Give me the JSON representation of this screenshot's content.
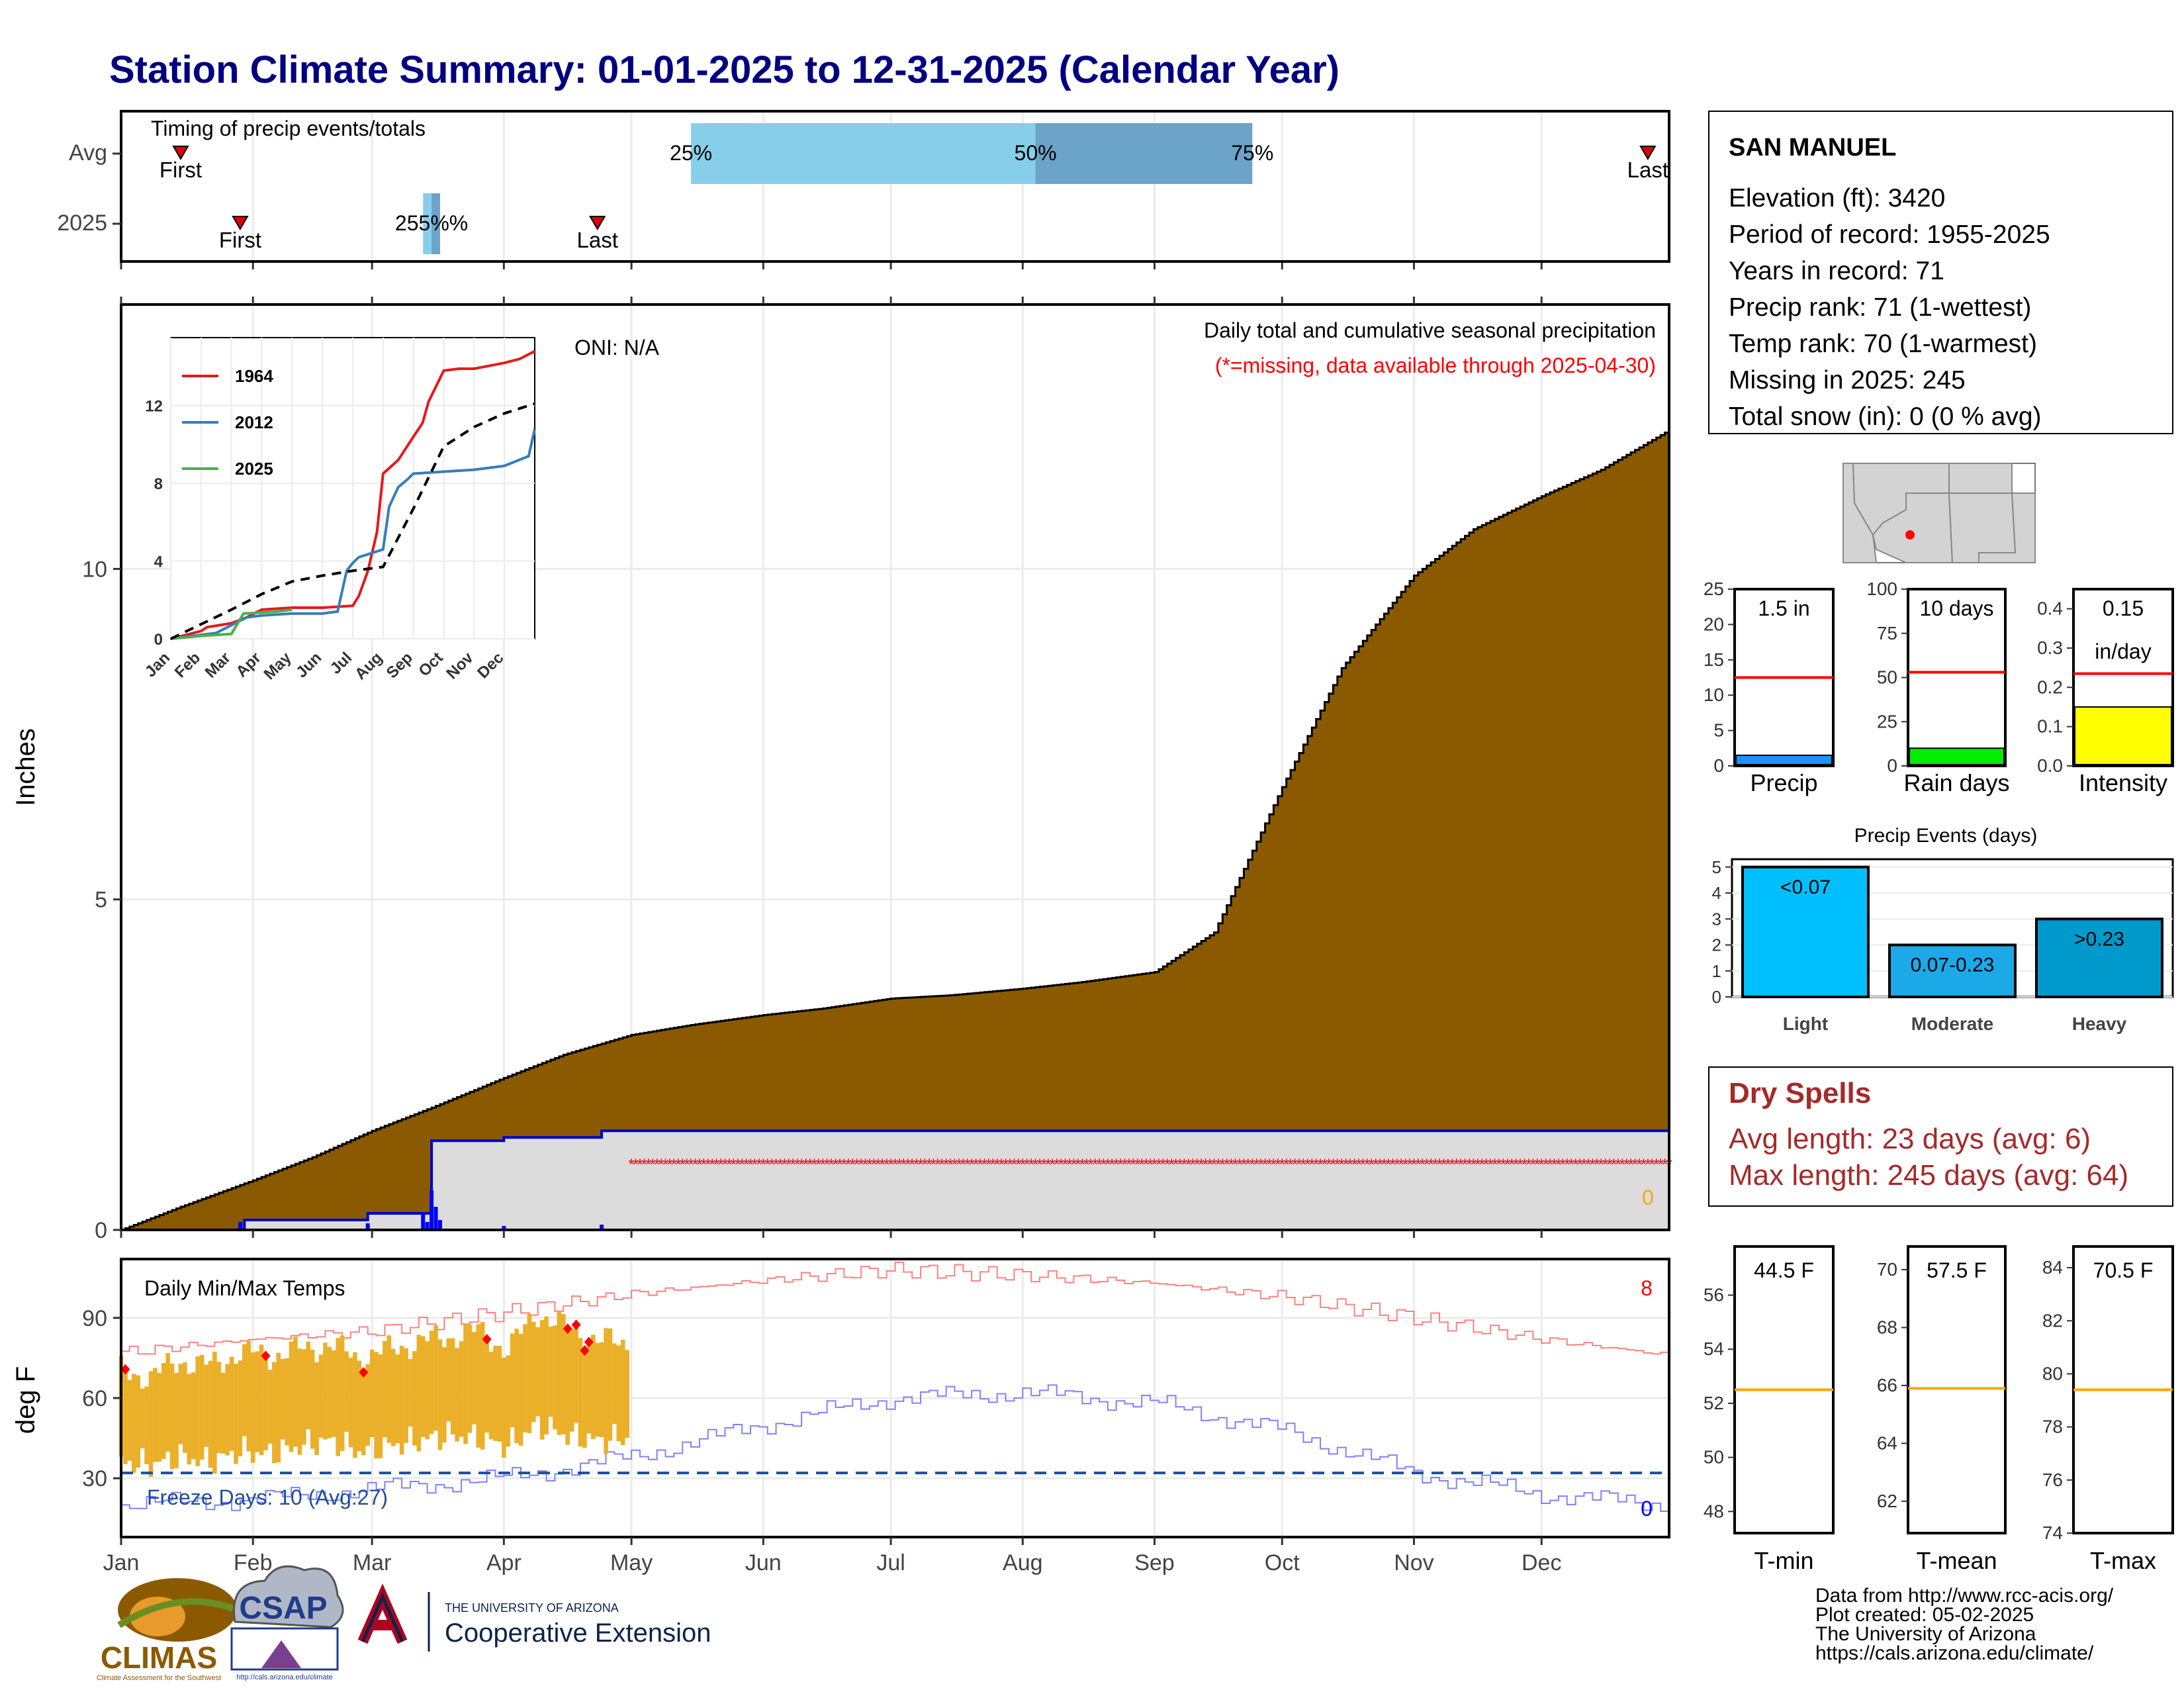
{
  "title": "Station Climate Summary: 01-01-2025 to 12-31-2025 (Calendar Year)",
  "months": [
    "Jan",
    "Feb",
    "Mar",
    "Apr",
    "May",
    "Jun",
    "Jul",
    "Aug",
    "Sep",
    "Oct",
    "Nov",
    "Dec"
  ],
  "colors": {
    "title": "#000080",
    "precip_fill": "#8B5A00",
    "light_blue": "#87CEEB",
    "mid_blue": "#6BA3C9",
    "temp_fill": "#EBB02A",
    "record_max": "#FF8080",
    "record_min": "#8080FF",
    "dry_red": "#A52A2A"
  },
  "timing": {
    "label": "Timing of precip events/totals",
    "row_labels": [
      "Avg",
      "2025"
    ],
    "first_label": "First",
    "last_label": "Last",
    "avg": {
      "first_day": 15,
      "last_day": 360,
      "p25": 135,
      "p50": 216,
      "p75": 267
    },
    "y2025": {
      "first_day": 29,
      "last_day": 113,
      "p25": 72,
      "p50": 74,
      "p75": 76
    },
    "pct_labels": [
      "25%",
      "50%",
      "75%"
    ],
    "overlap_label_2025": "255%%"
  },
  "station": {
    "name": "SAN MANUEL",
    "lines": [
      "Elevation (ft): 3420",
      "Period of record: 1955-2025",
      "Years in record: 71",
      "Precip rank: 71 (1-wettest)",
      "Temp rank: 70 (1-warmest)",
      "Missing in 2025: 245",
      "Total snow (in): 0 (0 % avg)"
    ]
  },
  "precip_panel": {
    "ylabel": "Inches",
    "oni": "ONI: N/A",
    "note1": "Daily total and cumulative seasonal precipitation",
    "note2": "(*=missing, data available through 2025-04-30)",
    "zero_label": "0",
    "yticks": [
      0,
      5,
      10
    ]
  },
  "inset": {
    "legend": [
      "1964",
      "2012",
      "2025"
    ],
    "legend_colors": [
      "#E41A1C",
      "#377EB8",
      "#4DAF4A"
    ],
    "yticks": [
      0,
      4,
      8,
      12
    ],
    "months": [
      "Jan",
      "Feb",
      "Mar",
      "Apr",
      "May",
      "Jun",
      "Jul",
      "Aug",
      "Sep",
      "Oct",
      "Nov",
      "Dec"
    ]
  },
  "gauges": [
    {
      "label": "Precip",
      "value_text": "1.5 in",
      "value": 1.5,
      "avg": 12.5,
      "ymax": 25,
      "yticks": [
        "0",
        "5",
        "10",
        "15",
        "20",
        "25"
      ],
      "color": "#1E90FF"
    },
    {
      "label": "Rain days",
      "value_text": "10 days",
      "value": 10,
      "avg": 53,
      "ymax": 100,
      "yticks": [
        "0",
        "25",
        "50",
        "75",
        "100"
      ],
      "color": "#00EE00"
    },
    {
      "label": "Intensity",
      "value_text": "0.15",
      "value_text2": "in/day",
      "value": 0.15,
      "avg": 0.235,
      "ymax": 0.45,
      "yticks": [
        "0.0",
        "0.1",
        "0.2",
        "0.3",
        "0.4"
      ],
      "color": "#FFFF00"
    }
  ],
  "events": {
    "title": "Precip Events (days)",
    "categories": [
      "Light",
      "Moderate",
      "Heavy"
    ],
    "values": [
      5,
      2,
      3
    ],
    "labels": [
      "<0.07",
      "0.07-0.23",
      ">0.23"
    ],
    "colors": [
      "#00BFFF",
      "#1CA9E8",
      "#0099CC"
    ],
    "yticks": [
      "0",
      "1",
      "2",
      "3",
      "4",
      "5"
    ]
  },
  "dry_spells": {
    "title": "Dry Spells",
    "line1": "Avg length: 23 days (avg: 6)",
    "line2": "Max length: 245 days (avg: 64)"
  },
  "temp_panel": {
    "ylabel": "deg F",
    "label": "Daily Min/Max Temps",
    "freeze": "Freeze Days: 10 (Avg:27)",
    "count_max": "8",
    "count_min": "0",
    "yticks": [
      30,
      60,
      90
    ]
  },
  "temp_gauges": [
    {
      "label": "T-min",
      "value_text": "44.5 F",
      "avg": 52.5,
      "ymin": 47.2,
      "ymax": 57.8,
      "yticks": [
        "48",
        "50",
        "52",
        "54",
        "56"
      ],
      "tickvals": [
        48,
        50,
        52,
        54,
        56
      ]
    },
    {
      "label": "T-mean",
      "value_text": "57.5 F",
      "avg": 65.9,
      "ymin": 60.9,
      "ymax": 70.8,
      "yticks": [
        "62",
        "64",
        "66",
        "68",
        "70"
      ],
      "tickvals": [
        62,
        64,
        66,
        68,
        70
      ]
    },
    {
      "label": "T-max",
      "value_text": "70.5 F",
      "avg": 79.4,
      "ymin": 74.0,
      "ymax": 84.8,
      "yticks": [
        "74",
        "76",
        "78",
        "80",
        "82",
        "84"
      ],
      "tickvals": [
        74,
        76,
        78,
        80,
        82,
        84
      ]
    }
  ],
  "footer": {
    "lines": [
      "Data from http://www.rcc-acis.org/",
      "Plot created: 05-02-2025",
      "The University of Arizona",
      "https://cals.arizona.edu/climate/"
    ],
    "climas": "CLIMAS",
    "climas_sub": "Climate Assessment for the Southwest",
    "csap": "CSAP",
    "csap_url": "http://cals.arizona.edu/climate",
    "ua_small": "THE UNIVERSITY OF ARIZONA",
    "ua_big": "Cooperative Extension"
  },
  "chart_data": [
    {
      "type": "area",
      "title": "Daily total and cumulative seasonal precipitation",
      "ylabel": "Inches",
      "ylim": [
        0,
        14
      ],
      "x_unit": "day of year",
      "series": [
        {
          "name": "cumulative average",
          "x": [
            1,
            15,
            32,
            46,
            60,
            74,
            91,
            105,
            121,
            135,
            152,
            166,
            182,
            196,
            213,
            227,
            244,
            258,
            274,
            288,
            305,
            319,
            335,
            349,
            365
          ],
          "values": [
            0,
            0.35,
            0.75,
            1.1,
            1.5,
            1.85,
            2.3,
            2.65,
            2.95,
            3.1,
            3.25,
            3.35,
            3.5,
            3.55,
            3.65,
            3.75,
            3.9,
            4.5,
            6.7,
            8.5,
            9.9,
            10.6,
            11.1,
            11.5,
            12.1
          ]
        },
        {
          "name": "2025 cumulative",
          "x": [
            1,
            15,
            29,
            30,
            58,
            59,
            60,
            72,
            74,
            76,
            78,
            90,
            91,
            113,
            114,
            365
          ],
          "values": [
            0,
            0,
            0,
            0.15,
            0.15,
            0.25,
            0.25,
            0.25,
            1.35,
            1.35,
            1.35,
            1.35,
            1.4,
            1.4,
            1.5,
            1.5
          ]
        }
      ],
      "missing_from_day": 121
    },
    {
      "type": "line",
      "title": "Daily Min/Max Temps",
      "ylabel": "deg F",
      "ylim": [
        8,
        112
      ],
      "freeze_line": 32,
      "record_max_x": [
        1,
        32,
        60,
        91,
        121,
        152,
        182,
        213,
        244,
        274,
        305,
        335,
        365
      ],
      "record_max": [
        77,
        82,
        85,
        92,
        99,
        104,
        108,
        106,
        103,
        98,
        90,
        82,
        76
      ],
      "record_min_x": [
        1,
        32,
        60,
        91,
        121,
        152,
        182,
        213,
        244,
        274,
        305,
        335,
        365
      ],
      "record_min": [
        20,
        22,
        26,
        30,
        38,
        50,
        60,
        62,
        58,
        48,
        32,
        24,
        20
      ],
      "obs_x": [
        1,
        8,
        15,
        22,
        29,
        36,
        43,
        50,
        57,
        64,
        71,
        78,
        85,
        92,
        99,
        106,
        113,
        120
      ],
      "obs_max": [
        70,
        68,
        74,
        72,
        77,
        76,
        78,
        80,
        75,
        78,
        81,
        83,
        85,
        78,
        92,
        86,
        82,
        80
      ],
      "obs_min": [
        36,
        35,
        38,
        36,
        40,
        39,
        42,
        44,
        40,
        42,
        44,
        46,
        45,
        42,
        50,
        46,
        44,
        45
      ]
    }
  ]
}
